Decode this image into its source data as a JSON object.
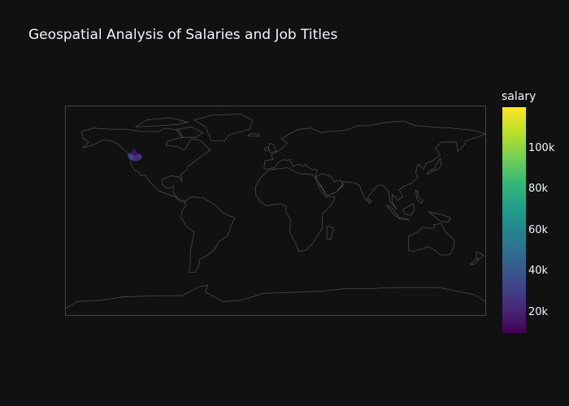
{
  "title": "Geospatial Analysis of Salaries and Job Titles",
  "colorbar": {
    "title": "salary",
    "ticks": [
      "20k",
      "40k",
      "60k",
      "80k",
      "100k"
    ],
    "tick_values": [
      20000,
      40000,
      60000,
      80000,
      100000
    ],
    "min": 10000,
    "max": 120000,
    "colorscale": "viridis"
  },
  "colors": {
    "background": "#111111",
    "coastline": "#4a4a4a",
    "frame": "#444444"
  },
  "chart_data": {
    "type": "scatter",
    "projection": "equirectangular",
    "points": [
      {
        "lon": -124.5,
        "lat": 47.5,
        "salary": 38000
      },
      {
        "lon": -123.8,
        "lat": 46.8,
        "salary": 35000
      },
      {
        "lon": -123.0,
        "lat": 47.2,
        "salary": 25000
      },
      {
        "lon": -122.5,
        "lat": 47.9,
        "salary": 22000
      },
      {
        "lon": -122.2,
        "lat": 46.5,
        "salary": 20000
      },
      {
        "lon": -121.8,
        "lat": 47.4,
        "salary": 18000
      },
      {
        "lon": -121.4,
        "lat": 48.6,
        "salary": 15000
      },
      {
        "lon": -121.0,
        "lat": 46.0,
        "salary": 24000
      },
      {
        "lon": -120.6,
        "lat": 47.0,
        "salary": 17000
      },
      {
        "lon": -120.2,
        "lat": 48.3,
        "salary": 19000
      },
      {
        "lon": -119.8,
        "lat": 45.6,
        "salary": 21000
      },
      {
        "lon": -119.4,
        "lat": 46.9,
        "salary": 16000
      },
      {
        "lon": -119.0,
        "lat": 47.6,
        "salary": 14000
      },
      {
        "lon": -118.5,
        "lat": 46.2,
        "salary": 26000
      },
      {
        "lon": -118.0,
        "lat": 45.3,
        "salary": 30000
      },
      {
        "lon": -117.5,
        "lat": 46.7,
        "salary": 19000
      },
      {
        "lon": -117.0,
        "lat": 45.8,
        "salary": 33000
      },
      {
        "lon": -116.6,
        "lat": 46.4,
        "salary": 28000
      },
      {
        "lon": -120.8,
        "lat": 49.8,
        "salary": 13000
      },
      {
        "lon": -121.2,
        "lat": 50.6,
        "salary": 16000
      },
      {
        "lon": -122.0,
        "lat": 45.2,
        "salary": 23000
      },
      {
        "lon": -123.4,
        "lat": 45.9,
        "salary": 36000
      },
      {
        "lon": -118.8,
        "lat": 44.9,
        "salary": 20000
      },
      {
        "lon": -120.0,
        "lat": 44.6,
        "salary": 25000
      }
    ]
  }
}
